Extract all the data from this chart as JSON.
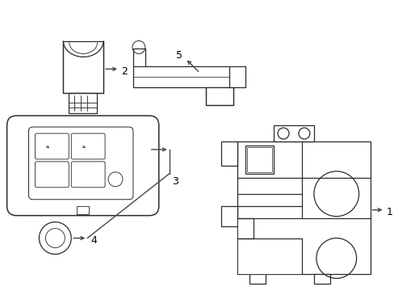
{
  "background_color": "#ffffff",
  "line_color": "#2a2a2a",
  "line_width": 0.9,
  "label_color": "#000000",
  "label_fontsize": 9,
  "arrow_color": "#444444",
  "fig_width": 4.89,
  "fig_height": 3.6,
  "dpi": 100
}
